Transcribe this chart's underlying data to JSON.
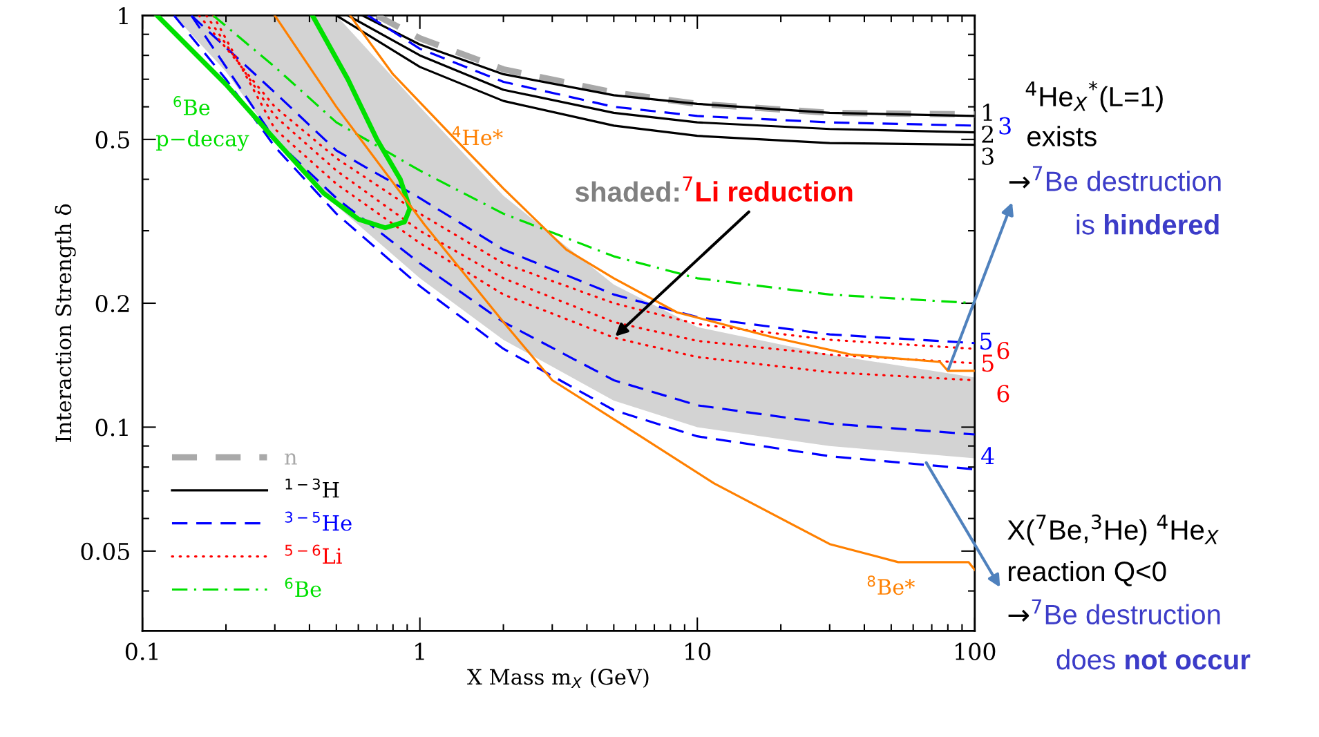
{
  "chart_data": {
    "type": "line",
    "log": "xy",
    "xlabel": "X Mass m$_{X}$ (GeV)",
    "ylabel": "Interaction Strength δ",
    "xlim": [
      0.1,
      100
    ],
    "ylim": [
      0.032,
      1
    ],
    "xticks": [
      0.1,
      1,
      10,
      100
    ],
    "yticks": [
      0.05,
      0.1,
      0.2,
      0.5,
      1
    ],
    "grid": false,
    "legend": "bottom left",
    "series": [
      {
        "name": "n",
        "color": "#a9a9a9",
        "line_style": "dashed",
        "x": [
          0.7,
          1,
          2,
          5,
          10,
          30,
          100
        ],
        "values": [
          1,
          0.88,
          0.74,
          0.65,
          0.61,
          0.58,
          0.575
        ]
      },
      {
        "name": "$^{1−3}$H",
        "color": "#000000",
        "line_style": "solid",
        "x": [
          0.62,
          1,
          2,
          5,
          10,
          30,
          100
        ],
        "values": [
          1,
          0.85,
          0.72,
          0.64,
          0.61,
          0.58,
          0.57
        ]
      },
      {
        "color": "#000000",
        "line_style": "solid",
        "x": [
          0.55,
          1,
          2,
          5,
          10,
          30,
          100
        ],
        "values": [
          1,
          0.8,
          0.66,
          0.58,
          0.55,
          0.53,
          0.52
        ]
      },
      {
        "color": "#000000",
        "line_style": "solid",
        "x": [
          0.5,
          1,
          2,
          5,
          10,
          30,
          100
        ],
        "values": [
          1,
          0.75,
          0.62,
          0.54,
          0.51,
          0.49,
          0.485
        ]
      },
      {
        "name": "$^{3−5}$He",
        "color": "#0000ff",
        "line_style": "dashed",
        "x": [
          0.65,
          1,
          2,
          5,
          10,
          30,
          100
        ],
        "values": [
          1,
          0.83,
          0.69,
          0.6,
          0.57,
          0.55,
          0.54
        ]
      },
      {
        "color": "#0000ff",
        "line_style": "dashed",
        "x": [
          0.15,
          0.3,
          0.5,
          1,
          2,
          5,
          10,
          30,
          100
        ],
        "values": [
          1,
          0.65,
          0.47,
          0.36,
          0.27,
          0.21,
          0.185,
          0.168,
          0.16
        ]
      },
      {
        "color": "#0000ff",
        "line_style": "dashed",
        "x": [
          0.15,
          0.3,
          0.5,
          1,
          2,
          5,
          10,
          30,
          100
        ],
        "values": [
          1,
          0.5,
          0.36,
          0.25,
          0.18,
          0.13,
          0.113,
          0.102,
          0.096
        ]
      },
      {
        "color": "#0000ff",
        "line_style": "dashed",
        "x": [
          0.13,
          0.2,
          0.3,
          0.5,
          1,
          2,
          5,
          10,
          30,
          100
        ],
        "values": [
          1,
          0.7,
          0.48,
          0.33,
          0.22,
          0.155,
          0.11,
          0.095,
          0.085,
          0.079
        ],
        "lower": [
          1,
          0.73,
          0.5,
          0.345,
          0.23,
          0.163,
          0.116,
          0.1,
          0.09,
          0.084
        ],
        "upper": [
          1,
          1,
          1,
          1,
          0.6,
          0.365,
          0.222,
          0.175,
          0.15,
          0.132
        ]
      },
      {
        "name": "$^{5−6}$Li",
        "color": "#ff0000",
        "line_style": "dotted",
        "x": [
          0.16,
          0.3,
          0.5,
          1,
          2,
          5,
          10,
          30,
          100
        ],
        "values": [
          1,
          0.6,
          0.45,
          0.33,
          0.25,
          0.2,
          0.178,
          0.163,
          0.155
        ]
      },
      {
        "color": "#ff0000",
        "line_style": "dotted",
        "x": [
          0.17,
          0.3,
          0.5,
          1,
          2,
          5,
          10,
          30,
          100
        ],
        "values": [
          1,
          0.57,
          0.42,
          0.3,
          0.23,
          0.18,
          0.162,
          0.15,
          0.143
        ]
      },
      {
        "color": "#ff0000",
        "line_style": "dotted",
        "x": [
          0.18,
          0.3,
          0.5,
          1,
          2,
          5,
          10,
          30,
          100
        ],
        "values": [
          1,
          0.53,
          0.39,
          0.28,
          0.21,
          0.165,
          0.148,
          0.136,
          0.13
        ]
      },
      {
        "name": "$^{6}$Be",
        "color": "#00e000",
        "line_style": "dashdot",
        "x": [
          0.18,
          0.3,
          0.5,
          1,
          2,
          5,
          10,
          30,
          100
        ],
        "values": [
          1,
          0.75,
          0.55,
          0.42,
          0.33,
          0.26,
          0.23,
          0.21,
          0.2
        ]
      },
      {
        "color": "#00e000",
        "line_style": "solid",
        "x": [
          0.113,
          0.2,
          0.3,
          0.45,
          0.6,
          0.75,
          0.88,
          0.92,
          0.85,
          0.7,
          0.55,
          0.41
        ],
        "values": [
          1,
          0.68,
          0.5,
          0.37,
          0.32,
          0.305,
          0.315,
          0.34,
          0.4,
          0.5,
          0.7,
          1
        ]
      },
      {
        "color": "#ff8000",
        "line_style": "solid",
        "x": [
          0.56,
          0.8,
          1.27,
          2,
          3.37,
          5,
          8.45,
          18.9,
          36,
          75,
          80,
          100
        ],
        "values": [
          1,
          0.72,
          0.52,
          0.38,
          0.27,
          0.23,
          0.19,
          0.165,
          0.15,
          0.144,
          0.137,
          0.137
        ]
      },
      {
        "color": "#ff8000",
        "line_style": "solid",
        "x": [
          0.3,
          0.5,
          1.04,
          2,
          3,
          5.3,
          11.5,
          30,
          53,
          95,
          100
        ],
        "values": [
          1,
          0.6,
          0.31,
          0.18,
          0.13,
          0.102,
          0.073,
          0.052,
          0.047,
          0.047,
          0.045
        ]
      }
    ],
    "annotations": [
      {
        "text": "1",
        "x": 100,
        "y": 0.575
      },
      {
        "text": "3",
        "x": 100,
        "y": 0.545
      },
      {
        "text": "2",
        "x": 100,
        "y": 0.52
      },
      {
        "text": "3",
        "x": 100,
        "y": 0.485
      },
      {
        "text": "5",
        "x": 100,
        "y": 0.16
      },
      {
        "text": "6",
        "x": 100,
        "y": 0.155
      },
      {
        "text": "5",
        "x": 100,
        "y": 0.143
      },
      {
        "text": "6",
        "x": 100,
        "y": 0.13
      },
      {
        "text": "4",
        "x": 100,
        "y": 0.087
      },
      "$^{6}$Be",
      "p−decay",
      {
        "text": "$^{4}$He*",
        "x": 1.3,
        "y": 0.5
      },
      "$^{8}$Be*",
      "shaded:",
      {
        "text": "$^{7}$Li reduction",
        "x": 5,
        "y": 0.165
      },
      "$^{4}$He$_{X}$$^{*}$(L=1)",
      "exists",
      {
        "text": "→",
        "x": 80,
        "y": 0.137
      },
      "$^{7}$Be destruction",
      "is ",
      "hindered",
      "X($^{7}$Be,$^{3}$He) $^{4}$He$_{X}$",
      "reaction Q<0",
      "→",
      "$^{7}$Be destruction",
      "does ",
      "not occur"
    ]
  }
}
